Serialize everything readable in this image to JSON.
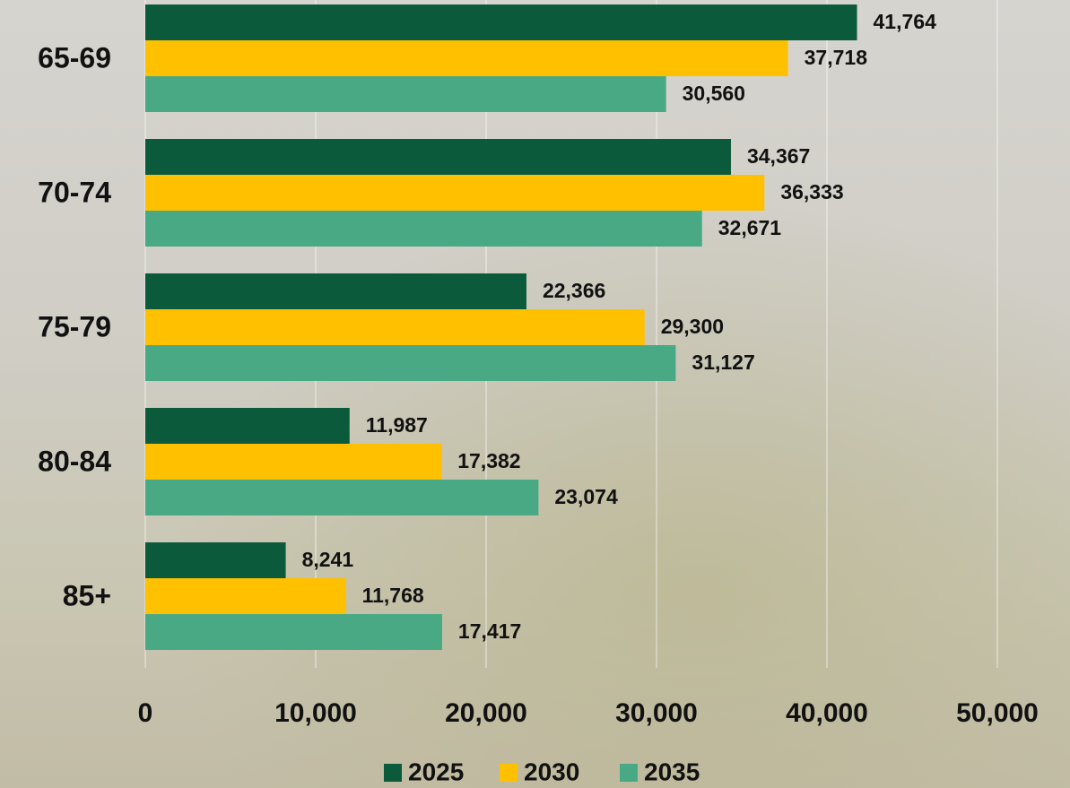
{
  "chart_data": {
    "type": "bar",
    "orientation": "horizontal",
    "categories": [
      "65-69",
      "70-74",
      "75-79",
      "80-84",
      "85+"
    ],
    "series": [
      {
        "name": "2025",
        "color": "#0b5a3c",
        "values": [
          41764,
          34367,
          22366,
          11987,
          8241
        ],
        "value_labels": [
          "41,764",
          "34,367",
          "22,366",
          "11,987",
          "8,241"
        ]
      },
      {
        "name": "2030",
        "color": "#ffc000",
        "values": [
          37718,
          36333,
          29300,
          17382,
          11768
        ],
        "value_labels": [
          "37,718",
          "36,333",
          "29,300",
          "17,382",
          "11,768"
        ]
      },
      {
        "name": "2035",
        "color": "#4aa985",
        "values": [
          30560,
          32671,
          31127,
          23074,
          17417
        ],
        "value_labels": [
          "30,560",
          "32,671",
          "31,127",
          "23,074",
          "17,417"
        ]
      }
    ],
    "xlim": [
      0,
      50000
    ],
    "xticks": [
      0,
      {
        "value": 10000,
        "label": "10,000"
      },
      {
        "value": 20000,
        "label": "20,000"
      },
      {
        "value": 30000,
        "label": "30,000"
      },
      {
        "value": 40000,
        "label": "40,000"
      },
      {
        "value": 50000,
        "label": "50,000"
      }
    ],
    "grid": true,
    "legend": "bottom"
  }
}
